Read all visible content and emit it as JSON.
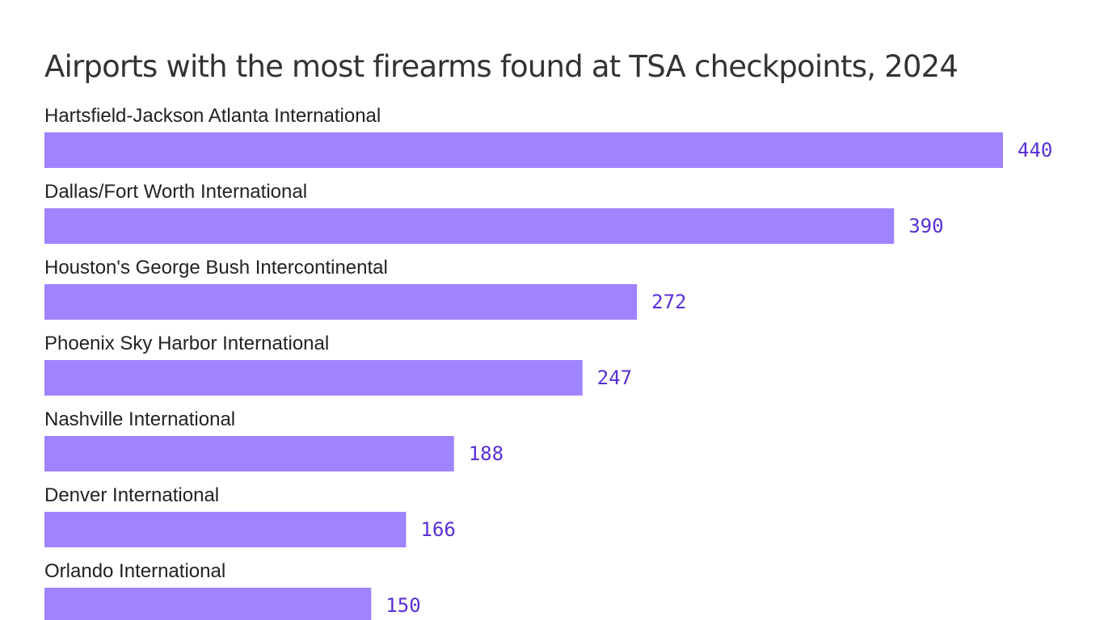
{
  "chart_data": {
    "type": "bar",
    "orientation": "horizontal",
    "title": "Airports with the most firearms found at TSA checkpoints, 2024",
    "categories": [
      "Hartsfield-Jackson Atlanta International",
      "Dallas/Fort Worth International",
      "Houston's George Bush Intercontinental",
      "Phoenix Sky Harbor International",
      "Nashville International",
      "Denver International",
      "Orlando International"
    ],
    "values": [
      440,
      390,
      272,
      247,
      188,
      166,
      150
    ],
    "color": "#a083ff",
    "label_color": "#5a2ed6"
  }
}
